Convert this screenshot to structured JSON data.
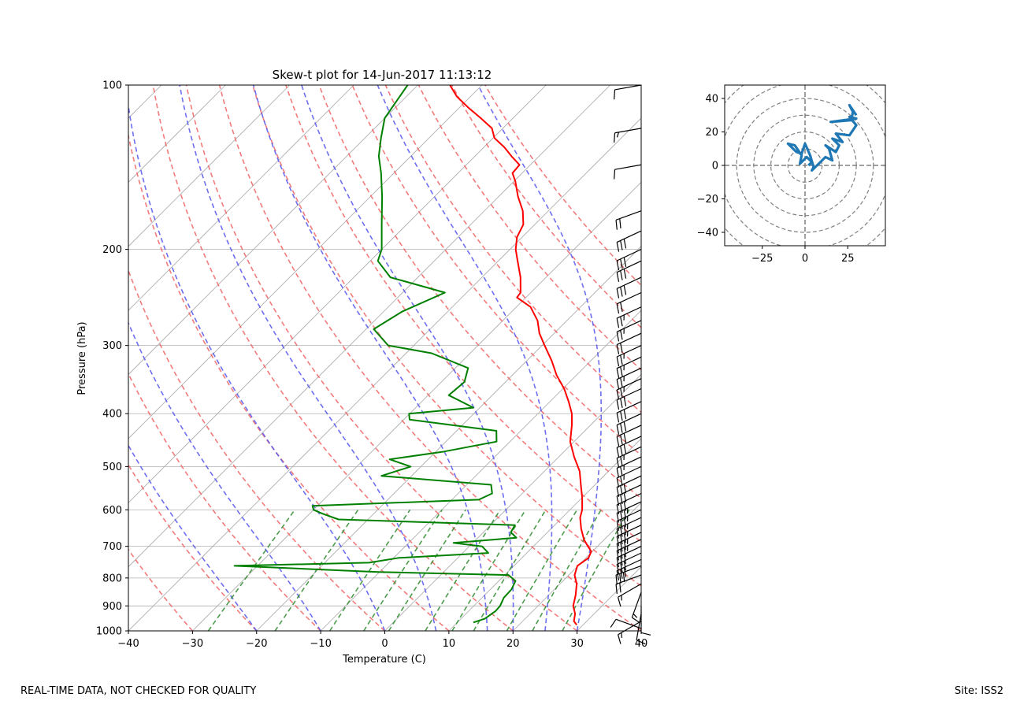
{
  "chart_data": [
    {
      "type": "line",
      "subtype": "skew-t",
      "title": "Skew-t plot for 14-Jun-2017 11:13:12",
      "xlabel": "Temperature (C)",
      "ylabel": "Pressure (hPa)",
      "xlim": [
        -40,
        40
      ],
      "ylim": [
        1000,
        100
      ],
      "y_scale": "log",
      "x_ticks": [
        -40,
        -30,
        -20,
        -10,
        0,
        10,
        20,
        30,
        40
      ],
      "x_tick_labels": [
        "−40",
        "−30",
        "−20",
        "−10",
        "0",
        "10",
        "20",
        "30",
        "40"
      ],
      "y_ticks": [
        1000,
        900,
        800,
        700,
        600,
        500,
        400,
        300,
        200,
        100
      ],
      "y_tick_labels": [
        "1000",
        "900",
        "800",
        "700",
        "600",
        "500",
        "400",
        "300",
        "200",
        "100"
      ],
      "grid": true,
      "background_lines": {
        "isotherms": {
          "color": "#a9a9a9",
          "values": [
            -120,
            -110,
            -100,
            -90,
            -80,
            -70,
            -60,
            -50,
            -40,
            -30,
            -20,
            -10,
            0,
            10,
            20,
            30,
            40
          ]
        },
        "dry_adiabats_theta_C": {
          "color": "#f06464",
          "values": [
            -30,
            -20,
            -10,
            0,
            10,
            20,
            30,
            40,
            50,
            60,
            70,
            80,
            90,
            100,
            110,
            120
          ]
        },
        "moist_adiabats_C": {
          "color": "#5555ee",
          "values": [
            -20,
            -10,
            0,
            8,
            16,
            20,
            25,
            30
          ]
        },
        "mixing_ratio_g_kg": {
          "color": "#2e8b2e",
          "values": [
            0.4,
            1,
            2,
            3,
            4,
            6,
            8,
            10,
            14,
            18,
            24
          ],
          "top_pressure": 600
        }
      },
      "series": [
        {
          "name": "",
          "color": "#ff0000",
          "points": [
            {
              "p": 975,
              "t": 29
            },
            {
              "p": 960,
              "t": 28
            },
            {
              "p": 930,
              "t": 27
            },
            {
              "p": 900,
              "t": 25.5
            },
            {
              "p": 860,
              "t": 24.2
            },
            {
              "p": 820,
              "t": 22.6
            },
            {
              "p": 790,
              "t": 20.9
            },
            {
              "p": 760,
              "t": 19.9
            },
            {
              "p": 735,
              "t": 20.4
            },
            {
              "p": 715,
              "t": 19.8
            },
            {
              "p": 700,
              "t": 18.5
            },
            {
              "p": 680,
              "t": 16.8
            },
            {
              "p": 650,
              "t": 14.7
            },
            {
              "p": 620,
              "t": 12.8
            },
            {
              "p": 600,
              "t": 11.9
            },
            {
              "p": 570,
              "t": 10.0
            },
            {
              "p": 540,
              "t": 7.8
            },
            {
              "p": 510,
              "t": 5.5
            },
            {
              "p": 480,
              "t": 2.4
            },
            {
              "p": 450,
              "t": -0.6
            },
            {
              "p": 420,
              "t": -2.9
            },
            {
              "p": 400,
              "t": -4.7
            },
            {
              "p": 380,
              "t": -7.1
            },
            {
              "p": 360,
              "t": -9.8
            },
            {
              "p": 340,
              "t": -13.1
            },
            {
              "p": 320,
              "t": -16.1
            },
            {
              "p": 300,
              "t": -19.6
            },
            {
              "p": 285,
              "t": -22.3
            },
            {
              "p": 270,
              "t": -24.6
            },
            {
              "p": 255,
              "t": -27.8
            },
            {
              "p": 245,
              "t": -31.4
            },
            {
              "p": 240,
              "t": -31.6
            },
            {
              "p": 225,
              "t": -34.0
            },
            {
              "p": 210,
              "t": -37.0
            },
            {
              "p": 200,
              "t": -39.1
            },
            {
              "p": 190,
              "t": -40.8
            },
            {
              "p": 180,
              "t": -41.8
            },
            {
              "p": 170,
              "t": -44.0
            },
            {
              "p": 160,
              "t": -47.0
            },
            {
              "p": 150,
              "t": -49.8
            },
            {
              "p": 145,
              "t": -51.5
            },
            {
              "p": 140,
              "t": -51.7
            },
            {
              "p": 135,
              "t": -54.3
            },
            {
              "p": 130,
              "t": -56.8
            },
            {
              "p": 125,
              "t": -59.8
            },
            {
              "p": 120,
              "t": -61.7
            },
            {
              "p": 115,
              "t": -65.0
            },
            {
              "p": 110,
              "t": -68.6
            },
            {
              "p": 105,
              "t": -72.1
            },
            {
              "p": 100,
              "t": -75.0
            }
          ]
        },
        {
          "name": "",
          "color": "#008000",
          "points": [
            {
              "p": 965,
              "t": 12.5
            },
            {
              "p": 950,
              "t": 13.7
            },
            {
              "p": 920,
              "t": 14.2
            },
            {
              "p": 900,
              "t": 14.1
            },
            {
              "p": 870,
              "t": 13.4
            },
            {
              "p": 840,
              "t": 13.3
            },
            {
              "p": 810,
              "t": 12.6
            },
            {
              "p": 790,
              "t": 10.6
            },
            {
              "p": 780,
              "t": -10.3
            },
            {
              "p": 760,
              "t": -33.6
            },
            {
              "p": 750,
              "t": -13.1
            },
            {
              "p": 735,
              "t": -9.2
            },
            {
              "p": 720,
              "t": 4.0
            },
            {
              "p": 700,
              "t": 2.0
            },
            {
              "p": 690,
              "t": -3.0
            },
            {
              "p": 675,
              "t": 6.0
            },
            {
              "p": 660,
              "t": 4.3
            },
            {
              "p": 640,
              "t": 3.8
            },
            {
              "p": 625,
              "t": -24.6
            },
            {
              "p": 610,
              "t": -28.0
            },
            {
              "p": 600,
              "t": -30.0
            },
            {
              "p": 590,
              "t": -30.8
            },
            {
              "p": 575,
              "t": -5.8
            },
            {
              "p": 560,
              "t": -4.7
            },
            {
              "p": 540,
              "t": -6.2
            },
            {
              "p": 520,
              "t": -24.7
            },
            {
              "p": 500,
              "t": -21.6
            },
            {
              "p": 485,
              "t": -26.0
            },
            {
              "p": 470,
              "t": -19.0
            },
            {
              "p": 450,
              "t": -12.1
            },
            {
              "p": 430,
              "t": -13.8
            },
            {
              "p": 410,
              "t": -29.1
            },
            {
              "p": 400,
              "t": -30.1
            },
            {
              "p": 390,
              "t": -21.0
            },
            {
              "p": 370,
              "t": -26.8
            },
            {
              "p": 350,
              "t": -26.4
            },
            {
              "p": 330,
              "t": -28.0
            },
            {
              "p": 310,
              "t": -36.0
            },
            {
              "p": 300,
              "t": -44.0
            },
            {
              "p": 280,
              "t": -48.8
            },
            {
              "p": 260,
              "t": -47.1
            },
            {
              "p": 240,
              "t": -43.4
            },
            {
              "p": 225,
              "t": -54.3
            },
            {
              "p": 210,
              "t": -58.8
            },
            {
              "p": 200,
              "t": -60.0
            },
            {
              "p": 180,
              "t": -63.9
            },
            {
              "p": 160,
              "t": -68.2
            },
            {
              "p": 145,
              "t": -72.0
            },
            {
              "p": 135,
              "t": -75.0
            },
            {
              "p": 125,
              "t": -77.5
            },
            {
              "p": 115,
              "t": -80.0
            },
            {
              "p": 100,
              "t": -81.6
            }
          ]
        }
      ],
      "wind_barbs": [
        {
          "p": 990,
          "dir": 290,
          "spd": 10
        },
        {
          "p": 960,
          "dir": 240,
          "spd": 15
        },
        {
          "p": 930,
          "dir": 190,
          "spd": 10
        },
        {
          "p": 900,
          "dir": 180,
          "spd": 10
        },
        {
          "p": 850,
          "dir": 200,
          "spd": 15
        },
        {
          "p": 820,
          "dir": 240,
          "spd": 15
        },
        {
          "p": 790,
          "dir": 250,
          "spd": 20
        },
        {
          "p": 760,
          "dir": 250,
          "spd": 30
        },
        {
          "p": 740,
          "dir": 245,
          "spd": 30
        },
        {
          "p": 720,
          "dir": 245,
          "spd": 30
        },
        {
          "p": 700,
          "dir": 245,
          "spd": 30
        },
        {
          "p": 680,
          "dir": 245,
          "spd": 35
        },
        {
          "p": 660,
          "dir": 245,
          "spd": 35
        },
        {
          "p": 640,
          "dir": 245,
          "spd": 35
        },
        {
          "p": 620,
          "dir": 245,
          "spd": 35
        },
        {
          "p": 600,
          "dir": 245,
          "spd": 35
        },
        {
          "p": 580,
          "dir": 245,
          "spd": 35
        },
        {
          "p": 560,
          "dir": 245,
          "spd": 30
        },
        {
          "p": 540,
          "dir": 245,
          "spd": 30
        },
        {
          "p": 520,
          "dir": 245,
          "spd": 30
        },
        {
          "p": 500,
          "dir": 245,
          "spd": 25
        },
        {
          "p": 480,
          "dir": 245,
          "spd": 25
        },
        {
          "p": 460,
          "dir": 245,
          "spd": 25
        },
        {
          "p": 440,
          "dir": 245,
          "spd": 30
        },
        {
          "p": 420,
          "dir": 245,
          "spd": 30
        },
        {
          "p": 400,
          "dir": 245,
          "spd": 30
        },
        {
          "p": 380,
          "dir": 245,
          "spd": 30
        },
        {
          "p": 360,
          "dir": 245,
          "spd": 30
        },
        {
          "p": 345,
          "dir": 245,
          "spd": 25
        },
        {
          "p": 330,
          "dir": 245,
          "spd": 25
        },
        {
          "p": 315,
          "dir": 245,
          "spd": 25
        },
        {
          "p": 300,
          "dir": 245,
          "spd": 25
        },
        {
          "p": 285,
          "dir": 245,
          "spd": 20
        },
        {
          "p": 270,
          "dir": 245,
          "spd": 25
        },
        {
          "p": 255,
          "dir": 245,
          "spd": 25
        },
        {
          "p": 240,
          "dir": 245,
          "spd": 20
        },
        {
          "p": 225,
          "dir": 245,
          "spd": 30
        },
        {
          "p": 210,
          "dir": 245,
          "spd": 30
        },
        {
          "p": 200,
          "dir": 245,
          "spd": 30
        },
        {
          "p": 185,
          "dir": 245,
          "spd": 30
        },
        {
          "p": 170,
          "dir": 250,
          "spd": 20
        },
        {
          "p": 140,
          "dir": 260,
          "spd": 10
        },
        {
          "p": 120,
          "dir": 260,
          "spd": 15
        },
        {
          "p": 100,
          "dir": 260,
          "spd": 10
        }
      ]
    },
    {
      "type": "line",
      "subtype": "hodograph",
      "xlim": [
        -47,
        47
      ],
      "ylim": [
        -48,
        48
      ],
      "x_ticks": [
        -25,
        0,
        25
      ],
      "x_tick_labels": [
        "−25",
        "0",
        "25"
      ],
      "y_ticks": [
        -40,
        -20,
        0,
        20,
        40
      ],
      "y_tick_labels": [
        "−40",
        "−20",
        "0",
        "20",
        "40"
      ],
      "rings": [
        10,
        20,
        30,
        40,
        50,
        60
      ],
      "series": [
        {
          "name": "",
          "color": "#1f77b4",
          "points": [
            {
              "u": 2,
              "v": 0
            },
            {
              "u": 4,
              "v": 2
            },
            {
              "u": 1,
              "v": 5
            },
            {
              "u": -3,
              "v": 1
            },
            {
              "u": -2,
              "v": 6
            },
            {
              "u": -6,
              "v": 12
            },
            {
              "u": -10,
              "v": 13
            },
            {
              "u": -5,
              "v": 8
            },
            {
              "u": -2,
              "v": 7
            },
            {
              "u": 0,
              "v": 13
            },
            {
              "u": 3,
              "v": 6
            },
            {
              "u": 5,
              "v": -1
            },
            {
              "u": 4,
              "v": -3
            },
            {
              "u": 8,
              "v": 1
            },
            {
              "u": 12,
              "v": 5
            },
            {
              "u": 16,
              "v": 3
            },
            {
              "u": 14,
              "v": 10
            },
            {
              "u": 12,
              "v": 12
            },
            {
              "u": 18,
              "v": 8
            },
            {
              "u": 20,
              "v": 12
            },
            {
              "u": 16,
              "v": 16
            },
            {
              "u": 22,
              "v": 14
            },
            {
              "u": 18,
              "v": 19
            },
            {
              "u": 26,
              "v": 18
            },
            {
              "u": 30,
              "v": 24
            },
            {
              "u": 26,
              "v": 29
            },
            {
              "u": 30,
              "v": 28
            },
            {
              "u": 15,
              "v": 26
            },
            {
              "u": 27,
              "v": 27
            },
            {
              "u": 28,
              "v": 32
            },
            {
              "u": 26,
              "v": 36
            },
            {
              "u": 30,
              "v": 30
            }
          ]
        }
      ]
    }
  ],
  "footer": {
    "left": "REAL-TIME DATA, NOT CHECKED FOR QUALITY",
    "right": "Site: ISS2"
  }
}
